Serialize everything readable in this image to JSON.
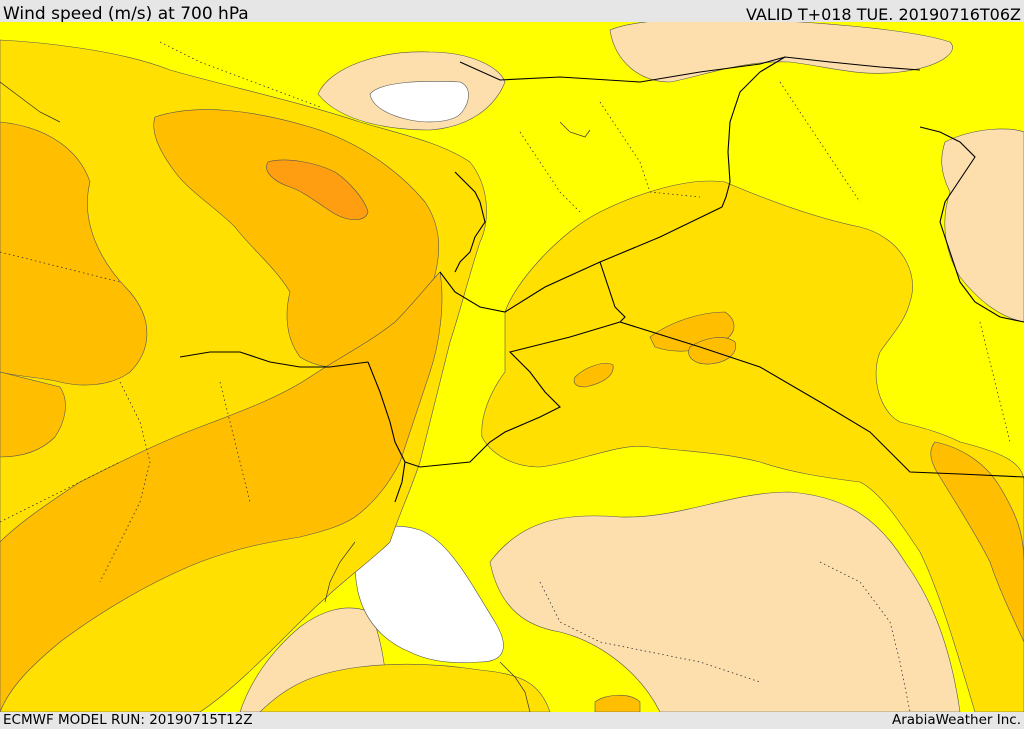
{
  "header": {
    "title": "Wind speed (m/s) at 700 hPa",
    "valid_time": "VALID T+018 TUE. 20190716T06Z"
  },
  "footer": {
    "model_run": "ECMWF MODEL RUN: 20190715T12Z",
    "credit": "ArabiaWeather Inc."
  },
  "colors": {
    "background_bar": "#e6e6e6",
    "band_lowest": "#ffffff",
    "band_light": "#fddfae",
    "band_yellow": "#ffff00",
    "band_gold": "#ffe000",
    "band_amber": "#ffbe00",
    "band_orange": "#ff9e10"
  }
}
